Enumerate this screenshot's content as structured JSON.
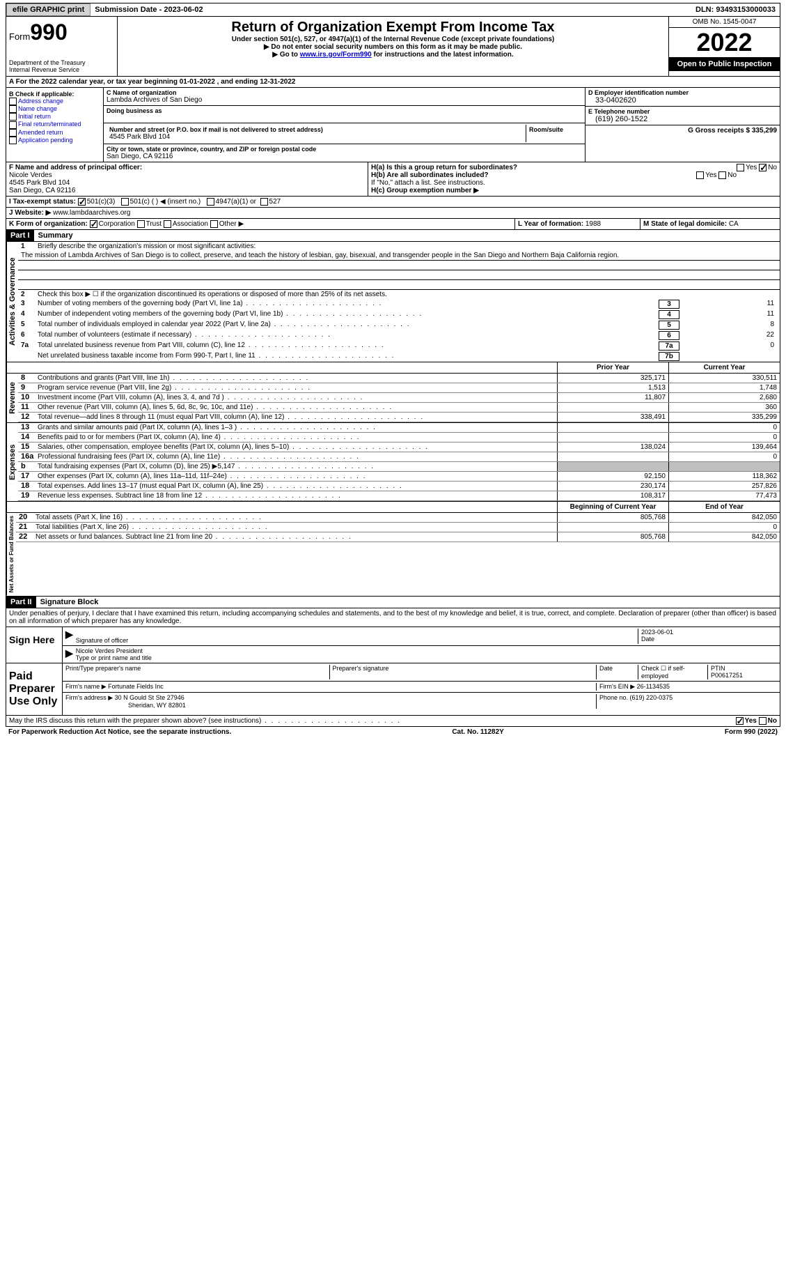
{
  "topbar": {
    "efile": "efile GRAPHIC print",
    "subdate_label": "Submission Date - ",
    "subdate": "2023-06-02",
    "dln_label": "DLN: ",
    "dln": "93493153000033"
  },
  "header": {
    "form_label": "Form",
    "form_num": "990",
    "dept": "Department of the Treasury",
    "irs": "Internal Revenue Service",
    "title": "Return of Organization Exempt From Income Tax",
    "sub1": "Under section 501(c), 527, or 4947(a)(1) of the Internal Revenue Code (except private foundations)",
    "sub2": "▶ Do not enter social security numbers on this form as it may be made public.",
    "sub3_pre": "▶ Go to ",
    "sub3_link": "www.irs.gov/Form990",
    "sub3_post": " for instructions and the latest information.",
    "omb": "OMB No. 1545-0047",
    "year": "2022",
    "open": "Open to Public Inspection"
  },
  "row_a": "A For the 2022 calendar year, or tax year beginning 01-01-2022    , and ending 12-31-2022",
  "col_b": {
    "label": "B Check if applicable:",
    "opts": [
      "Address change",
      "Name change",
      "Initial return",
      "Final return/terminated",
      "Amended return",
      "Application pending"
    ]
  },
  "org": {
    "c_label": "C Name of organization",
    "name": "Lambda Archives of San Diego",
    "dba_label": "Doing business as",
    "addr_label": "Number and street (or P.O. box if mail is not delivered to street address)",
    "room_label": "Room/suite",
    "addr": "4545 Park Blvd 104",
    "city_label": "City or town, state or province, country, and ZIP or foreign postal code",
    "city": "San Diego, CA  92116"
  },
  "col_d": {
    "d_label": "D Employer identification number",
    "ein": "33-0402620",
    "e_label": "E Telephone number",
    "phone": "(619) 260-1522",
    "g_label": "G Gross receipts $ ",
    "gross": "335,299"
  },
  "f": {
    "label": "F  Name and address of principal officer:",
    "name": "Nicole Verdes",
    "addr1": "4545 Park Blvd 104",
    "addr2": "San Diego, CA  92116"
  },
  "h": {
    "ha_label": "H(a)  Is this a group return for subordinates?",
    "hb_label": "H(b)  Are all subordinates included?",
    "hb_note": "If \"No,\" attach a list. See instructions.",
    "hc_label": "H(c)  Group exemption number ▶",
    "yes": "Yes",
    "no": "No"
  },
  "tax_status": {
    "i_label": "I  Tax-exempt status:",
    "opt1": "501(c)(3)",
    "opt2": "501(c) (  ) ◀ (insert no.)",
    "opt3": "4947(a)(1) or",
    "opt4": "527"
  },
  "j": {
    "label": "J  Website: ▶",
    "val": "www.lambdaarchives.org"
  },
  "k": {
    "label": "K Form of organization:",
    "corp": "Corporation",
    "trust": "Trust",
    "assoc": "Association",
    "other": "Other ▶"
  },
  "l": {
    "label": "L Year of formation: ",
    "val": "1988"
  },
  "m": {
    "label": "M State of legal domicile: ",
    "val": "CA"
  },
  "part1": {
    "hdr": "Part I",
    "title": "Summary",
    "l1_label": "Briefly describe the organization's mission or most significant activities:",
    "l1_text": "The mission of Lambda Archives of San Diego is to collect, preserve, and teach the history of lesbian, gay, bisexual, and transgender people in the San Diego and Northern Baja California region.",
    "l2": "Check this box ▶ ☐  if the organization discontinued its operations or disposed of more than 25% of its net assets.",
    "lines": [
      {
        "n": "3",
        "t": "Number of voting members of the governing body (Part VI, line 1a)",
        "box": "3",
        "v": "11"
      },
      {
        "n": "4",
        "t": "Number of independent voting members of the governing body (Part VI, line 1b)",
        "box": "4",
        "v": "11"
      },
      {
        "n": "5",
        "t": "Total number of individuals employed in calendar year 2022 (Part V, line 2a)",
        "box": "5",
        "v": "8"
      },
      {
        "n": "6",
        "t": "Total number of volunteers (estimate if necessary)",
        "box": "6",
        "v": "22"
      },
      {
        "n": "7a",
        "t": "Total unrelated business revenue from Part VIII, column (C), line 12",
        "box": "7a",
        "v": "0"
      },
      {
        "n": "",
        "t": "Net unrelated business taxable income from Form 990-T, Part I, line 11",
        "box": "7b",
        "v": ""
      }
    ],
    "prior_hdr": "Prior Year",
    "current_hdr": "Current Year",
    "rev_label": "Revenue",
    "rev": [
      {
        "n": "8",
        "t": "Contributions and grants (Part VIII, line 1h)",
        "p": "325,171",
        "c": "330,511"
      },
      {
        "n": "9",
        "t": "Program service revenue (Part VIII, line 2g)",
        "p": "1,513",
        "c": "1,748"
      },
      {
        "n": "10",
        "t": "Investment income (Part VIII, column (A), lines 3, 4, and 7d )",
        "p": "11,807",
        "c": "2,680"
      },
      {
        "n": "11",
        "t": "Other revenue (Part VIII, column (A), lines 5, 6d, 8c, 9c, 10c, and 11e)",
        "p": "",
        "c": "360"
      },
      {
        "n": "12",
        "t": "Total revenue—add lines 8 through 11 (must equal Part VIII, column (A), line 12)",
        "p": "338,491",
        "c": "335,299"
      }
    ],
    "exp_label": "Expenses",
    "exp": [
      {
        "n": "13",
        "t": "Grants and similar amounts paid (Part IX, column (A), lines 1–3 )",
        "p": "",
        "c": "0"
      },
      {
        "n": "14",
        "t": "Benefits paid to or for members (Part IX, column (A), line 4)",
        "p": "",
        "c": "0"
      },
      {
        "n": "15",
        "t": "Salaries, other compensation, employee benefits (Part IX, column (A), lines 5–10)",
        "p": "138,024",
        "c": "139,464"
      },
      {
        "n": "16a",
        "t": "Professional fundraising fees (Part IX, column (A), line 11e)",
        "p": "",
        "c": "0"
      },
      {
        "n": "b",
        "t": "Total fundraising expenses (Part IX, column (D), line 25) ▶5,147",
        "p": "grey",
        "c": "grey"
      },
      {
        "n": "17",
        "t": "Other expenses (Part IX, column (A), lines 11a–11d, 11f–24e)",
        "p": "92,150",
        "c": "118,362"
      },
      {
        "n": "18",
        "t": "Total expenses. Add lines 13–17 (must equal Part IX, column (A), line 25)",
        "p": "230,174",
        "c": "257,826"
      },
      {
        "n": "19",
        "t": "Revenue less expenses. Subtract line 18 from line 12",
        "p": "108,317",
        "c": "77,473"
      }
    ],
    "na_label": "Net Assets or Fund Balances",
    "begin_hdr": "Beginning of Current Year",
    "end_hdr": "End of Year",
    "na": [
      {
        "n": "20",
        "t": "Total assets (Part X, line 16)",
        "p": "805,768",
        "c": "842,050"
      },
      {
        "n": "21",
        "t": "Total liabilities (Part X, line 26)",
        "p": "",
        "c": "0"
      },
      {
        "n": "22",
        "t": "Net assets or fund balances. Subtract line 21 from line 20",
        "p": "805,768",
        "c": "842,050"
      }
    ]
  },
  "part2": {
    "hdr": "Part II",
    "title": "Signature Block",
    "decl": "Under penalties of perjury, I declare that I have examined this return, including accompanying schedules and statements, and to the best of my knowledge and belief, it is true, correct, and complete. Declaration of preparer (other than officer) is based on all information of which preparer has any knowledge.",
    "sign_here": "Sign Here",
    "sig_officer": "Signature of officer",
    "sig_date": "2023-06-01",
    "date_label": "Date",
    "officer_name": "Nicole Verdes  President",
    "type_name": "Type or print name and title",
    "paid_label": "Paid Preparer Use Only",
    "prep_name_label": "Print/Type preparer's name",
    "prep_sig_label": "Preparer's signature",
    "check_if": "Check ☐ if self-employed",
    "ptin_label": "PTIN",
    "ptin": "P00617251",
    "firm_name_label": "Firm's name   ▶ ",
    "firm_name": "Fortunate Fields Inc",
    "firm_ein_label": "Firm's EIN ▶ ",
    "firm_ein": "26-1134535",
    "firm_addr_label": "Firm's address ▶ ",
    "firm_addr": "30 N Gould St Ste 27946",
    "firm_city": "Sheridan, WY  82801",
    "phone_label": "Phone no. ",
    "phone": "(619) 220-0375",
    "may_irs": "May the IRS discuss this return with the preparer shown above? (see instructions)"
  },
  "footer": {
    "left": "For Paperwork Reduction Act Notice, see the separate instructions.",
    "mid": "Cat. No. 11282Y",
    "right": "Form 990 (2022)"
  }
}
